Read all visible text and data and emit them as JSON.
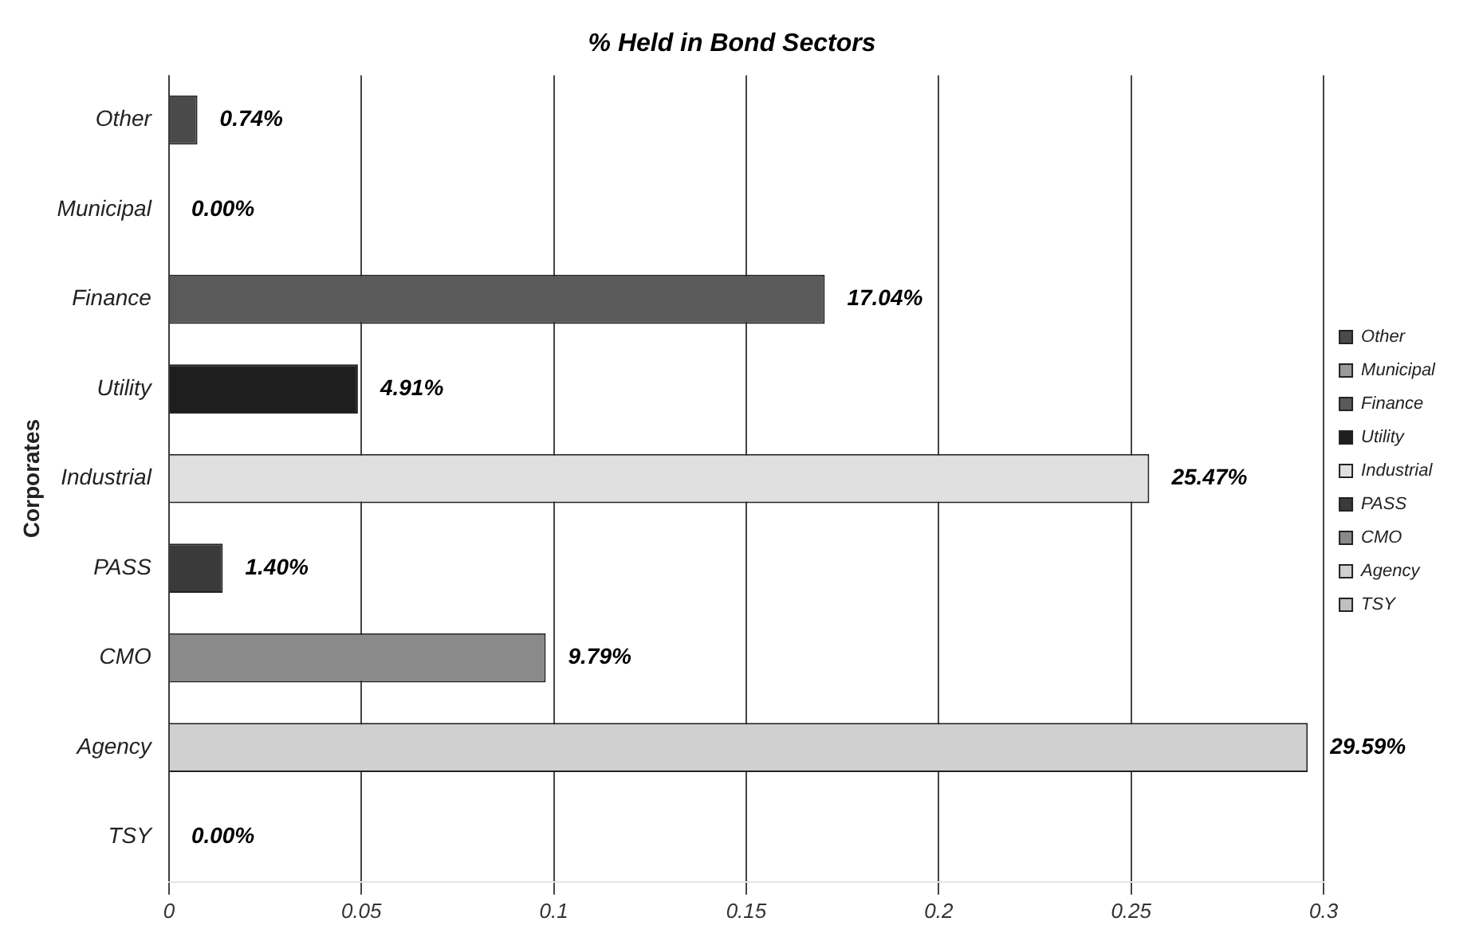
{
  "chart_data": {
    "type": "bar",
    "orientation": "horizontal",
    "stacked": true,
    "title": "% Held in Bond Sectors",
    "ylabel": "Corporates",
    "categories": [
      "Other",
      "Municipal",
      "Finance",
      "Utility",
      "Industrial",
      "PASS",
      "CMO",
      "Agency",
      "TSY"
    ],
    "series": [
      {
        "name": "Other",
        "color": "#4a4a4a",
        "values": [
          0.0074,
          null,
          null,
          null,
          null,
          null,
          null,
          null,
          null
        ],
        "value_labels": [
          "0.74%",
          null,
          null,
          null,
          null,
          null,
          null,
          null,
          null
        ]
      },
      {
        "name": "Municipal",
        "color": "#9a9a9a",
        "values": [
          null,
          0,
          null,
          null,
          null,
          null,
          null,
          null,
          null
        ],
        "value_labels": [
          null,
          "0.00%",
          null,
          null,
          null,
          null,
          null,
          null,
          null
        ]
      },
      {
        "name": "Finance",
        "color": "#5a5a5a",
        "values": [
          null,
          null,
          0.1704,
          null,
          null,
          null,
          null,
          null,
          null
        ],
        "value_labels": [
          null,
          null,
          "17.04%",
          null,
          null,
          null,
          null,
          null,
          null
        ]
      },
      {
        "name": "Utility",
        "color": "#1e1e1e",
        "values": [
          null,
          null,
          null,
          0.0491,
          null,
          null,
          null,
          null,
          null
        ],
        "value_labels": [
          null,
          null,
          null,
          "4.91%",
          null,
          null,
          null,
          null,
          null
        ]
      },
      {
        "name": "Industrial",
        "color": "#e0e0e0",
        "values": [
          null,
          null,
          null,
          null,
          0.2547,
          null,
          null,
          null,
          null
        ],
        "value_labels": [
          null,
          null,
          null,
          null,
          "25.47%",
          null,
          null,
          null,
          null
        ]
      },
      {
        "name": "PASS",
        "color": "#3a3a3a",
        "values": [
          null,
          null,
          null,
          null,
          null,
          0.014,
          null,
          null,
          null
        ],
        "value_labels": [
          null,
          null,
          null,
          null,
          null,
          "1.40%",
          null,
          null,
          null
        ]
      },
      {
        "name": "CMO",
        "color": "#8a8a8a",
        "values": [
          null,
          null,
          null,
          null,
          null,
          null,
          0.0979,
          null,
          null
        ],
        "value_labels": [
          null,
          null,
          null,
          null,
          null,
          null,
          "9.79%",
          null,
          null
        ]
      },
      {
        "name": "Agency",
        "color": "#d0d0d0",
        "values": [
          null,
          null,
          null,
          null,
          null,
          null,
          null,
          0.2959,
          null
        ],
        "value_labels": [
          null,
          null,
          null,
          null,
          null,
          null,
          null,
          "29.59%",
          null
        ]
      },
      {
        "name": "TSY",
        "color": "#c0c0c0",
        "values": [
          null,
          null,
          null,
          null,
          null,
          null,
          null,
          null,
          0
        ],
        "value_labels": [
          null,
          null,
          null,
          null,
          null,
          null,
          null,
          null,
          "0.00%"
        ]
      }
    ],
    "xlim": [
      0,
      0.3
    ],
    "xticks": [
      0,
      0.05,
      {
        "value": 0.1,
        "label": "0.1"
      },
      0.15,
      {
        "value": 0.2,
        "label": "0.2"
      },
      0.25,
      {
        "value": 0.3,
        "label": "0.3"
      }
    ],
    "grid": "x",
    "legend": "right"
  }
}
